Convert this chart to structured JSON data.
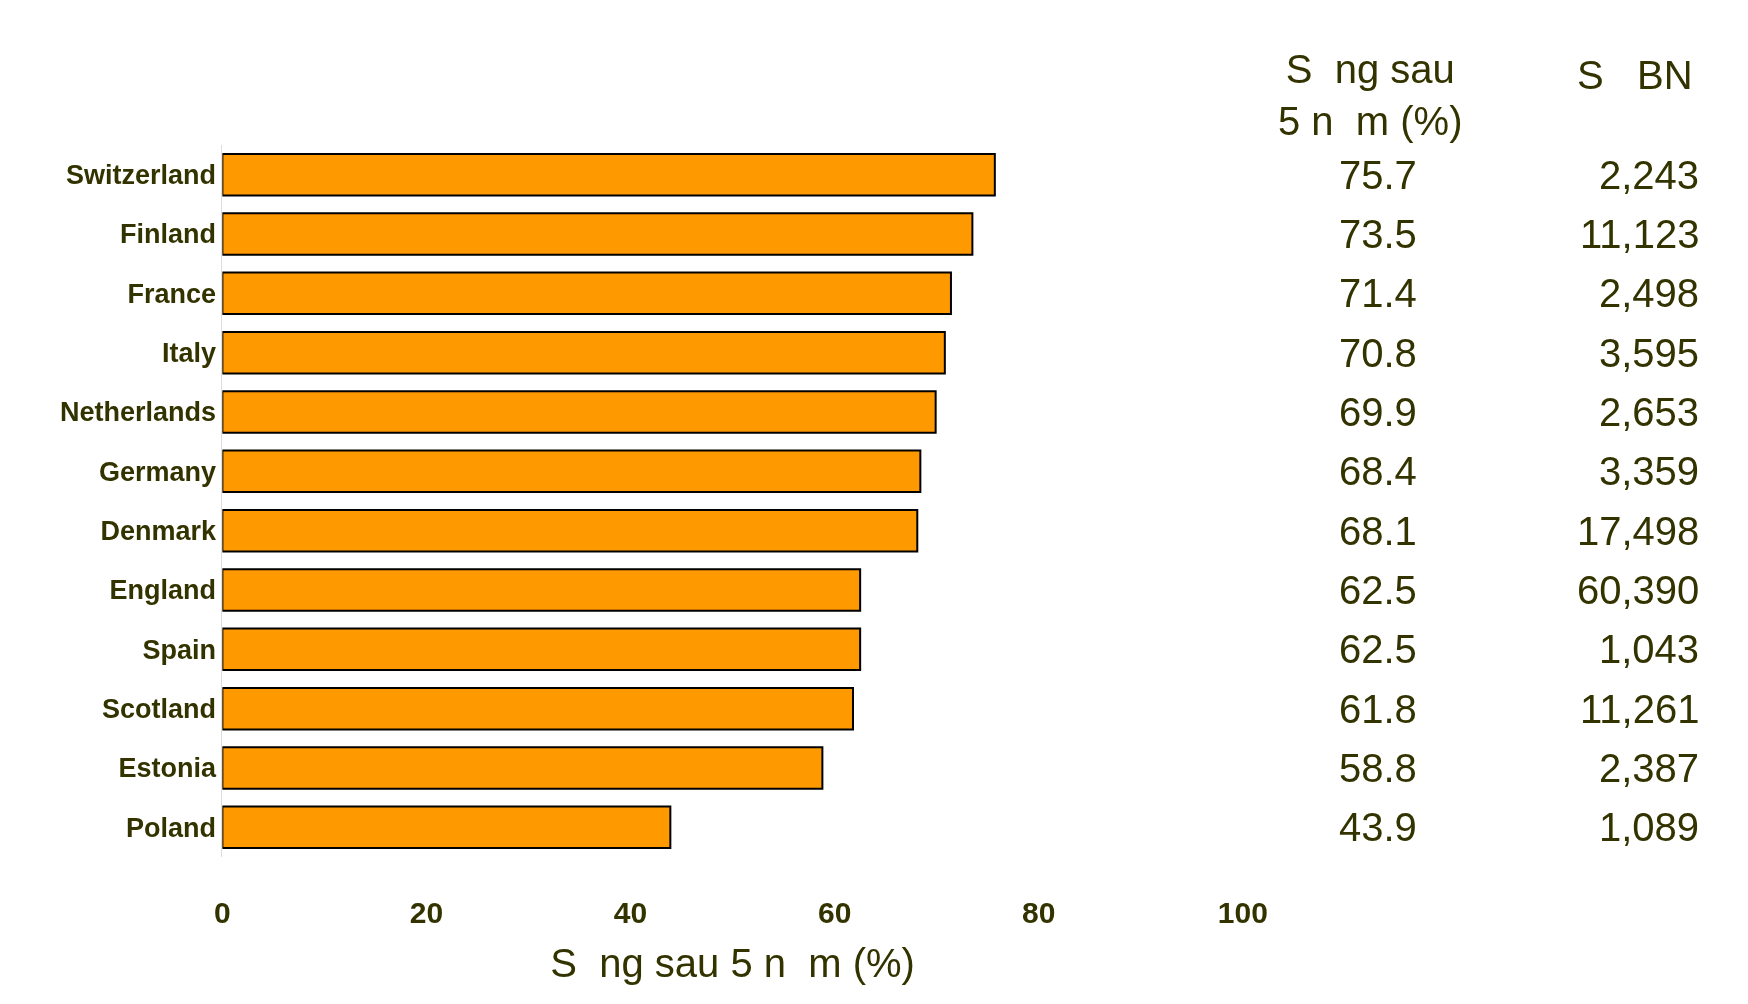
{
  "chart_data": {
    "type": "bar",
    "orientation": "horizontal",
    "xlabel": "S  ng sau 5 n  m (%)",
    "categories": [
      "Switzerland",
      "Finland",
      "France",
      "Italy",
      "Netherlands",
      "Germany",
      "Denmark",
      "England",
      "Spain",
      "Scotland",
      "Estonia",
      "Poland"
    ],
    "values": [
      75.7,
      73.5,
      71.4,
      70.8,
      69.9,
      68.4,
      68.1,
      62.5,
      62.5,
      61.8,
      58.8,
      43.9
    ],
    "color": "#ff9900",
    "data_labels": true,
    "xlim": [
      0,
      100
    ],
    "xticks": [
      0,
      20,
      40,
      60,
      80,
      100
    ],
    "legend": false,
    "annotations": [
      "S  ng sau\n5 n  m (%)",
      "S   BN",
      "2,243",
      "11,123",
      "2,498",
      "3,595",
      "2,653",
      "3,359",
      "17,498",
      "60,390",
      "1,043",
      "11,261",
      "2,387",
      "1,089"
    ]
  }
}
